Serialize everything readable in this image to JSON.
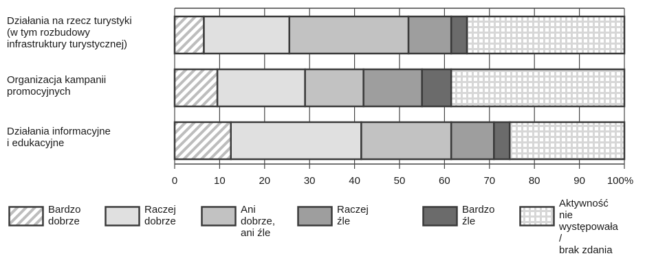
{
  "chart_data": {
    "type": "bar",
    "orientation": "horizontal",
    "stacked": true,
    "categories": [
      [
        "Działania na rzecz turystyki",
        "(w tym rozbudowy",
        "infrastruktury turystycznej)"
      ],
      [
        "Organizacja kampanii",
        "promocyjnych"
      ],
      [
        "Działania informacyjne",
        "i edukacyjne"
      ]
    ],
    "series": [
      {
        "name": [
          "Bardzo",
          "dobrze"
        ],
        "values": [
          6.5,
          9.5,
          12.5
        ],
        "fill": "hatch"
      },
      {
        "name": [
          "Raczej",
          "dobrze"
        ],
        "values": [
          19,
          19.5,
          29
        ],
        "fill": "#e0e0e0"
      },
      {
        "name": [
          "Ani dobrze,",
          "ani źle"
        ],
        "values": [
          26.5,
          13,
          20
        ],
        "fill": "#c2c2c2"
      },
      {
        "name": [
          "Raczej",
          "źle"
        ],
        "values": [
          9.5,
          13,
          9.5
        ],
        "fill": "#9e9e9e"
      },
      {
        "name": [
          "Bardzo",
          "źle"
        ],
        "values": [
          3.5,
          6.5,
          3.5
        ],
        "fill": "#6b6b6b"
      },
      {
        "name": [
          "Aktywność nie",
          "występowała /",
          "brak zdania"
        ],
        "values": [
          35,
          38.5,
          25.5
        ],
        "fill": "dots"
      }
    ],
    "xlim": [
      0,
      100
    ],
    "x_ticks": [
      "0",
      "10",
      "20",
      "30",
      "40",
      "50",
      "60",
      "70",
      "80",
      "90",
      "100%"
    ],
    "grid": true,
    "legend_position": "bottom"
  }
}
